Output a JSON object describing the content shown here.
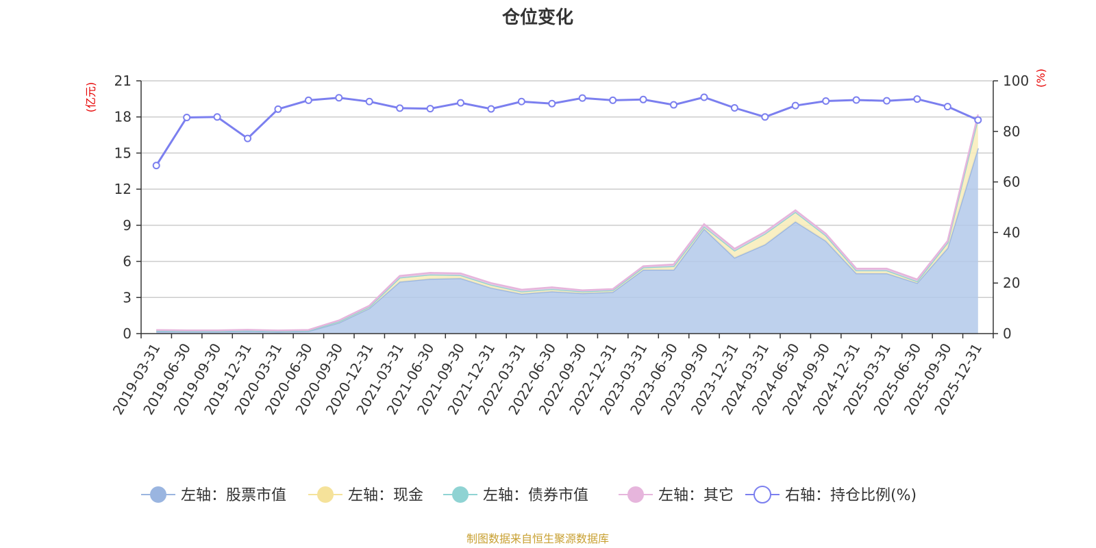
{
  "chart_data": {
    "type": "area",
    "title": "仓位变化",
    "categories": [
      "2019-03-31",
      "2019-06-30",
      "2019-09-30",
      "2019-12-31",
      "2020-03-31",
      "2020-06-30",
      "2020-09-30",
      "2020-12-31",
      "2021-03-31",
      "2021-06-30",
      "2021-09-30",
      "2021-12-31",
      "2022-03-31",
      "2022-06-30",
      "2022-09-30",
      "2022-12-31",
      "2023-03-31",
      "2023-06-30",
      "2023-09-30",
      "2023-12-31",
      "2024-03-31",
      "2024-06-30",
      "2024-09-30",
      "2024-12-31",
      "2025-03-31",
      "2025-06-30",
      "2025-09-30",
      "2025-12-31"
    ],
    "left_axis": {
      "unit": "(亿元)",
      "ylim": [
        0,
        21
      ],
      "ticks": [
        "0",
        "3",
        "6",
        "9",
        "12",
        "15",
        "18",
        "21"
      ]
    },
    "right_axis": {
      "unit": "(%)",
      "ylim": [
        0,
        100
      ],
      "ticks": [
        "0",
        "20",
        "40",
        "60",
        "80",
        "100"
      ]
    },
    "series": [
      {
        "name": "左轴：股票市值",
        "axis": "left",
        "stack": true,
        "color": "#9ab5e0",
        "fill": "#b3c9ea",
        "values": [
          0.17,
          0.16,
          0.16,
          0.2,
          0.15,
          0.2,
          0.9,
          2.1,
          4.3,
          4.55,
          4.6,
          3.8,
          3.3,
          3.5,
          3.35,
          3.45,
          5.3,
          5.3,
          8.7,
          6.3,
          7.4,
          9.3,
          7.7,
          5.0,
          5.0,
          4.2,
          7.1,
          15.4
        ]
      },
      {
        "name": "左轴：现金",
        "axis": "left",
        "stack": true,
        "color": "#f5e29a",
        "fill": "#f8ecb8",
        "values": [
          0.08,
          0.06,
          0.06,
          0.07,
          0.06,
          0.06,
          0.1,
          0.12,
          0.35,
          0.35,
          0.25,
          0.25,
          0.2,
          0.2,
          0.15,
          0.15,
          0.2,
          0.3,
          0.2,
          0.6,
          0.9,
          0.8,
          0.45,
          0.25,
          0.25,
          0.15,
          0.45,
          2.5
        ]
      },
      {
        "name": "左轴：债券市值",
        "axis": "left",
        "stack": true,
        "color": "#8fd3d3",
        "fill": "#b5e3e3",
        "values": [
          0,
          0,
          0,
          0,
          0,
          0,
          0,
          0,
          0,
          0,
          0,
          0,
          0,
          0,
          0,
          0,
          0,
          0,
          0,
          0,
          0,
          0,
          0,
          0,
          0,
          0,
          0,
          0
        ]
      },
      {
        "name": "左轴：其它",
        "axis": "left",
        "stack": true,
        "color": "#e6b5dc",
        "fill": "#eecbe6",
        "values": [
          0.05,
          0.05,
          0.05,
          0.05,
          0.05,
          0.05,
          0.1,
          0.1,
          0.15,
          0.15,
          0.15,
          0.15,
          0.15,
          0.15,
          0.1,
          0.1,
          0.1,
          0.15,
          0.2,
          0.15,
          0.15,
          0.15,
          0.15,
          0.15,
          0.15,
          0.15,
          0.15,
          0.3
        ]
      },
      {
        "name": "右轴：持仓比例(%)",
        "axis": "right",
        "type": "line",
        "color": "#7b7fef",
        "values": [
          66.5,
          85.5,
          85.7,
          77.2,
          88.8,
          92.3,
          93.3,
          91.8,
          89.2,
          89.0,
          91.3,
          88.9,
          91.8,
          91.0,
          93.2,
          92.3,
          92.6,
          90.5,
          93.5,
          89.3,
          85.7,
          90.2,
          92.0,
          92.4,
          92.1,
          92.8,
          89.8,
          84.5
        ]
      }
    ],
    "legend_position": "bottom",
    "grid": true
  },
  "footer": {
    "source": "制图数据来自恒生聚源数据库"
  }
}
